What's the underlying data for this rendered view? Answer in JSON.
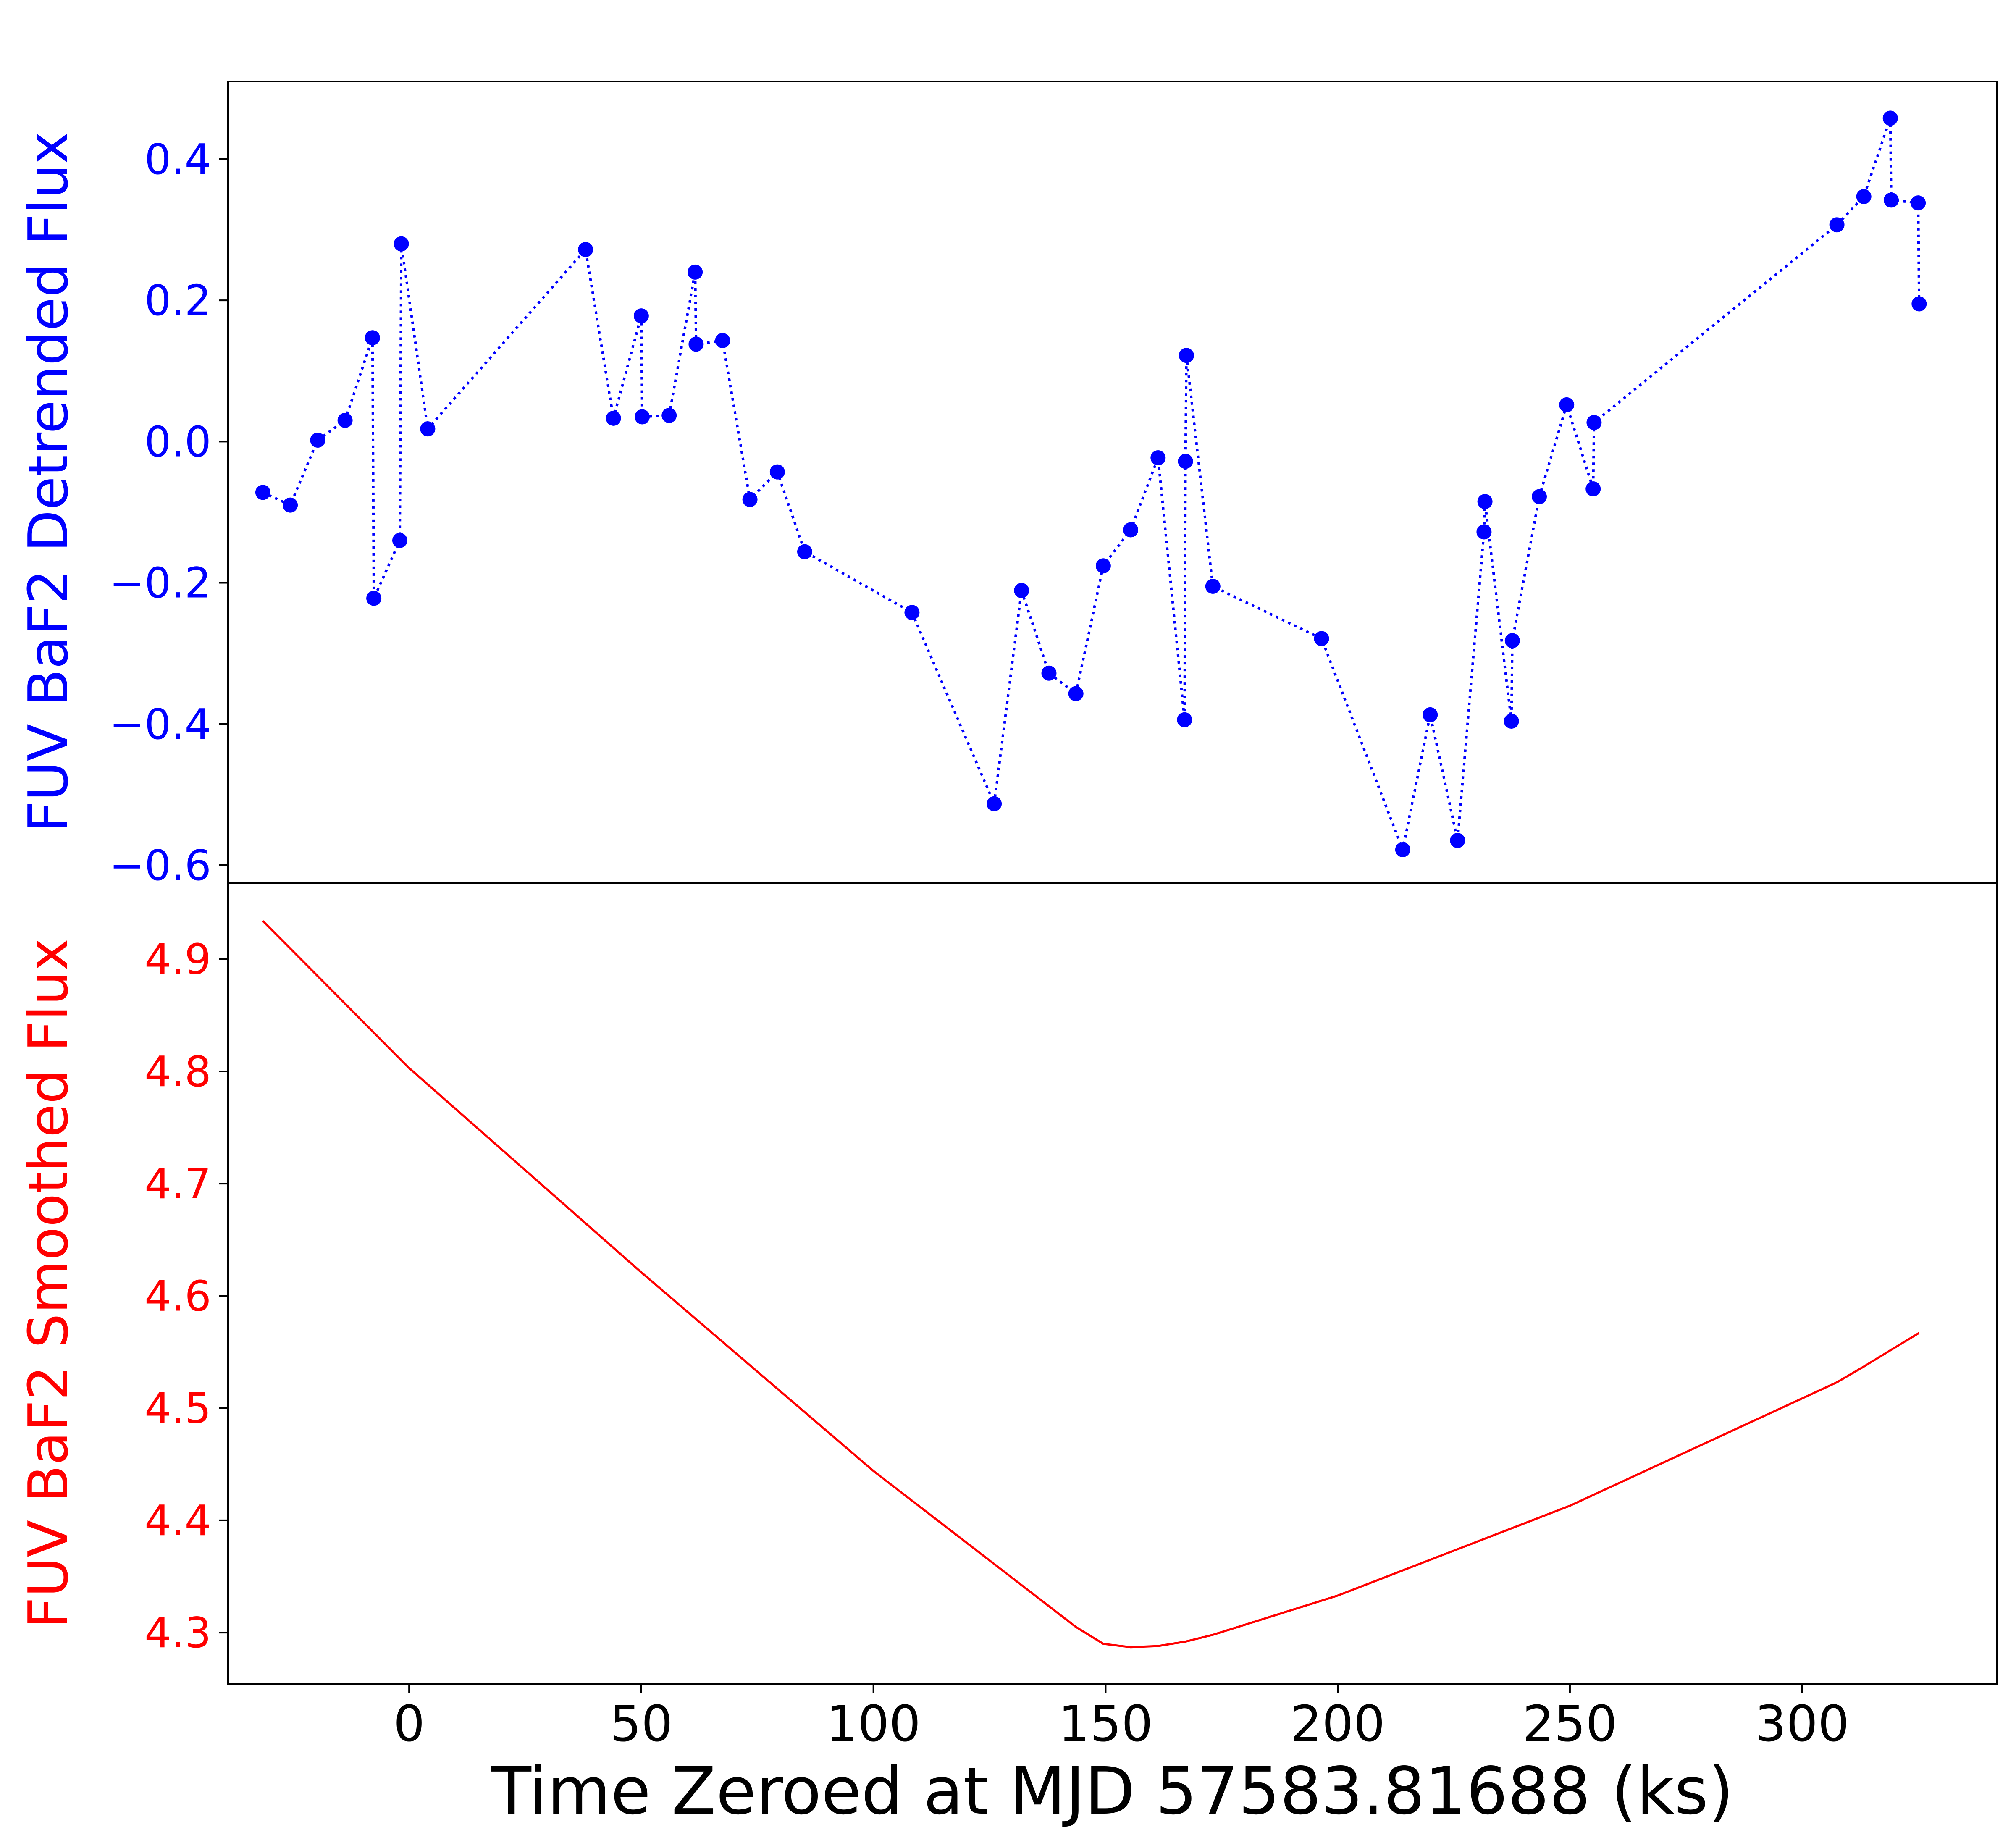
{
  "chart_data": [
    {
      "type": "line",
      "panel": "top",
      "xlabel": "Time Zeroed at MJD 57583.81688 (ks)",
      "ylabel": "FUV BaF2 Detrended Flux",
      "color": "#0000ff",
      "line_style": "dotted",
      "markers": true,
      "xlim": [
        -39,
        342
      ],
      "ylim": [
        -0.625,
        0.51
      ],
      "yticks": [
        0.4,
        0.2,
        0.0,
        -0.2,
        -0.4,
        -0.6
      ],
      "ytick_labels": [
        "0.4",
        "0.2",
        "0.0",
        "−0.2",
        "−0.4",
        "−0.6"
      ],
      "series": [
        {
          "x": [
            -31.5,
            -25.6,
            -19.7,
            -13.8,
            -7.9,
            -7.6,
            -2.0,
            -1.7,
            4.0,
            38.0,
            44.0,
            50.0,
            50.2,
            56.0,
            61.6,
            61.8,
            67.5,
            73.4,
            79.3,
            85.2,
            108.3,
            126.0,
            131.9,
            137.8,
            143.6,
            149.5,
            155.4,
            161.3,
            167.0,
            167.2,
            167.4,
            173.1,
            196.5,
            214.0,
            219.9,
            225.8,
            231.5,
            231.7,
            237.4,
            237.6,
            243.4,
            249.3,
            255.0,
            255.2,
            307.5,
            313.3,
            319.0,
            319.2,
            325.0,
            325.2
          ],
          "y": [
            -0.072,
            -0.09,
            0.002,
            0.03,
            0.147,
            -0.222,
            -0.14,
            0.28,
            0.018,
            0.272,
            0.033,
            0.178,
            0.035,
            0.037,
            0.24,
            0.138,
            0.143,
            -0.082,
            -0.043,
            -0.156,
            -0.242,
            -0.513,
            -0.211,
            -0.328,
            -0.357,
            -0.176,
            -0.125,
            -0.023,
            -0.394,
            -0.028,
            0.122,
            -0.205,
            -0.279,
            -0.578,
            -0.387,
            -0.565,
            -0.128,
            -0.085,
            -0.396,
            -0.282,
            -0.078,
            0.052,
            -0.067,
            0.027,
            0.307,
            0.347,
            0.458,
            0.342,
            0.338,
            0.195
          ]
        }
      ]
    },
    {
      "type": "line",
      "panel": "bottom",
      "xlabel": "Time Zeroed at MJD 57583.81688 (ks)",
      "ylabel": "FUV BaF2 Smoothed Flux",
      "color": "#ff0000",
      "line_style": "solid",
      "markers": false,
      "xlim": [
        -39,
        342
      ],
      "ylim": [
        4.254,
        4.968
      ],
      "yticks": [
        4.3,
        4.4,
        4.5,
        4.6,
        4.7,
        4.8,
        4.9
      ],
      "ytick_labels": [
        "4.3",
        "4.4",
        "4.5",
        "4.6",
        "4.7",
        "4.8",
        "4.9"
      ],
      "xticks": [
        0,
        50,
        100,
        150,
        200,
        250,
        300
      ],
      "xtick_labels": [
        "0",
        "50",
        "100",
        "150",
        "200",
        "250",
        "300"
      ],
      "series": [
        {
          "x": [
            -31.5,
            0,
            50,
            100,
            143.6,
            149.5,
            155.4,
            161.3,
            167.2,
            173.1,
            200,
            250,
            307.5,
            313.3,
            319.2,
            325.2
          ],
          "y": [
            4.934,
            4.803,
            4.621,
            4.444,
            4.305,
            4.29,
            4.287,
            4.288,
            4.292,
            4.298,
            4.333,
            4.413,
            4.523,
            4.537,
            4.552,
            4.567
          ]
        }
      ]
    }
  ]
}
